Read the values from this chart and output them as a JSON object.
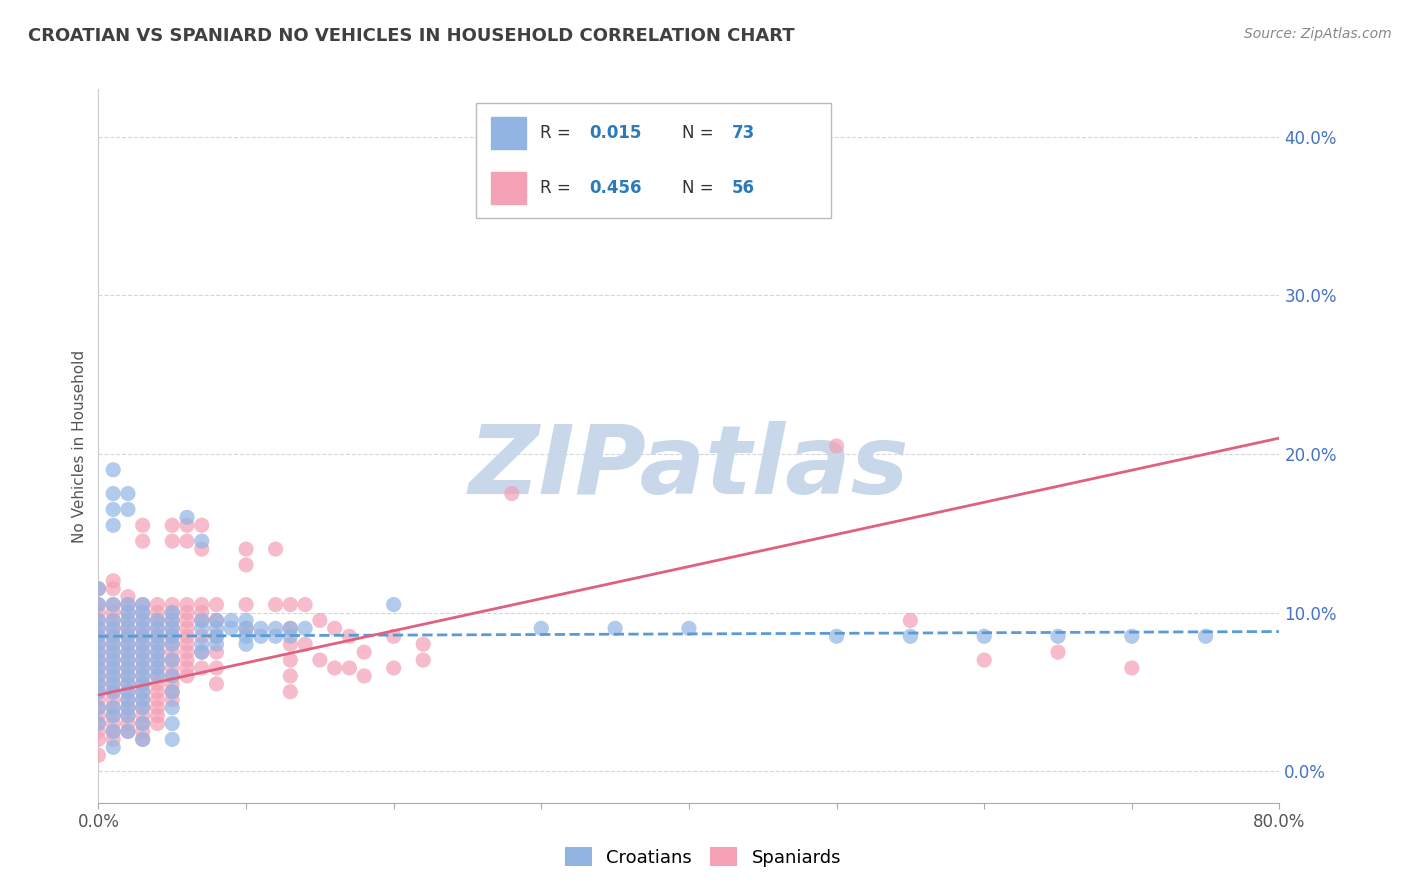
{
  "title": "CROATIAN VS SPANIARD NO VEHICLES IN HOUSEHOLD CORRELATION CHART",
  "source": "Source: ZipAtlas.com",
  "ylabel": "No Vehicles in Household",
  "xlim": [
    0.0,
    0.8
  ],
  "ylim": [
    -0.02,
    0.43
  ],
  "xticks": [
    0.0,
    0.1,
    0.2,
    0.3,
    0.4,
    0.5,
    0.6,
    0.7,
    0.8
  ],
  "yticks": [
    0.0,
    0.1,
    0.2,
    0.3,
    0.4
  ],
  "croatian_color": "#92b4e3",
  "spaniard_color": "#f4a0b5",
  "croatian_line_color": "#5b9bd5",
  "spaniard_line_color": "#e06080",
  "croatian_R": 0.015,
  "croatian_N": 73,
  "spaniard_R": 0.456,
  "spaniard_N": 56,
  "background_color": "#ffffff",
  "grid_color": "#cccccc",
  "watermark": "ZIPatlas",
  "watermark_color": "#c8d8ea",
  "croatian_line": [
    [
      0.0,
      0.085
    ],
    [
      0.8,
      0.088
    ]
  ],
  "spaniard_line": [
    [
      0.0,
      0.048
    ],
    [
      0.8,
      0.21
    ]
  ],
  "croatian_scatter": [
    [
      0.0,
      0.115
    ],
    [
      0.0,
      0.105
    ],
    [
      0.0,
      0.095
    ],
    [
      0.0,
      0.09
    ],
    [
      0.0,
      0.085
    ],
    [
      0.0,
      0.08
    ],
    [
      0.0,
      0.075
    ],
    [
      0.0,
      0.07
    ],
    [
      0.0,
      0.065
    ],
    [
      0.0,
      0.06
    ],
    [
      0.0,
      0.055
    ],
    [
      0.0,
      0.05
    ],
    [
      0.0,
      0.04
    ],
    [
      0.0,
      0.03
    ],
    [
      0.01,
      0.19
    ],
    [
      0.01,
      0.175
    ],
    [
      0.01,
      0.165
    ],
    [
      0.01,
      0.155
    ],
    [
      0.01,
      0.105
    ],
    [
      0.01,
      0.095
    ],
    [
      0.01,
      0.09
    ],
    [
      0.01,
      0.085
    ],
    [
      0.01,
      0.08
    ],
    [
      0.01,
      0.075
    ],
    [
      0.01,
      0.07
    ],
    [
      0.01,
      0.065
    ],
    [
      0.01,
      0.06
    ],
    [
      0.01,
      0.055
    ],
    [
      0.01,
      0.05
    ],
    [
      0.01,
      0.04
    ],
    [
      0.01,
      0.035
    ],
    [
      0.01,
      0.025
    ],
    [
      0.01,
      0.015
    ],
    [
      0.02,
      0.175
    ],
    [
      0.02,
      0.165
    ],
    [
      0.02,
      0.105
    ],
    [
      0.02,
      0.1
    ],
    [
      0.02,
      0.095
    ],
    [
      0.02,
      0.09
    ],
    [
      0.02,
      0.085
    ],
    [
      0.02,
      0.08
    ],
    [
      0.02,
      0.075
    ],
    [
      0.02,
      0.07
    ],
    [
      0.02,
      0.065
    ],
    [
      0.02,
      0.06
    ],
    [
      0.02,
      0.055
    ],
    [
      0.02,
      0.05
    ],
    [
      0.02,
      0.045
    ],
    [
      0.02,
      0.04
    ],
    [
      0.02,
      0.035
    ],
    [
      0.02,
      0.025
    ],
    [
      0.03,
      0.105
    ],
    [
      0.03,
      0.1
    ],
    [
      0.03,
      0.095
    ],
    [
      0.03,
      0.09
    ],
    [
      0.03,
      0.085
    ],
    [
      0.03,
      0.08
    ],
    [
      0.03,
      0.075
    ],
    [
      0.03,
      0.07
    ],
    [
      0.03,
      0.065
    ],
    [
      0.03,
      0.06
    ],
    [
      0.03,
      0.055
    ],
    [
      0.03,
      0.05
    ],
    [
      0.03,
      0.045
    ],
    [
      0.03,
      0.04
    ],
    [
      0.03,
      0.03
    ],
    [
      0.03,
      0.02
    ],
    [
      0.04,
      0.095
    ],
    [
      0.04,
      0.09
    ],
    [
      0.04,
      0.085
    ],
    [
      0.04,
      0.08
    ],
    [
      0.04,
      0.075
    ],
    [
      0.04,
      0.07
    ],
    [
      0.04,
      0.065
    ],
    [
      0.04,
      0.06
    ],
    [
      0.05,
      0.1
    ],
    [
      0.05,
      0.095
    ],
    [
      0.05,
      0.09
    ],
    [
      0.05,
      0.085
    ],
    [
      0.05,
      0.08
    ],
    [
      0.05,
      0.07
    ],
    [
      0.05,
      0.06
    ],
    [
      0.05,
      0.05
    ],
    [
      0.05,
      0.04
    ],
    [
      0.05,
      0.03
    ],
    [
      0.05,
      0.02
    ],
    [
      0.06,
      0.16
    ],
    [
      0.07,
      0.145
    ],
    [
      0.07,
      0.095
    ],
    [
      0.07,
      0.09
    ],
    [
      0.07,
      0.08
    ],
    [
      0.07,
      0.075
    ],
    [
      0.08,
      0.095
    ],
    [
      0.08,
      0.09
    ],
    [
      0.08,
      0.085
    ],
    [
      0.08,
      0.08
    ],
    [
      0.09,
      0.095
    ],
    [
      0.09,
      0.09
    ],
    [
      0.1,
      0.095
    ],
    [
      0.1,
      0.09
    ],
    [
      0.1,
      0.085
    ],
    [
      0.1,
      0.08
    ],
    [
      0.11,
      0.09
    ],
    [
      0.11,
      0.085
    ],
    [
      0.12,
      0.09
    ],
    [
      0.12,
      0.085
    ],
    [
      0.13,
      0.09
    ],
    [
      0.13,
      0.085
    ],
    [
      0.14,
      0.09
    ],
    [
      0.2,
      0.105
    ],
    [
      0.3,
      0.09
    ],
    [
      0.35,
      0.09
    ],
    [
      0.4,
      0.09
    ],
    [
      0.5,
      0.085
    ],
    [
      0.55,
      0.085
    ],
    [
      0.6,
      0.085
    ],
    [
      0.65,
      0.085
    ],
    [
      0.7,
      0.085
    ],
    [
      0.75,
      0.085
    ]
  ],
  "spaniard_scatter": [
    [
      0.0,
      0.115
    ],
    [
      0.0,
      0.105
    ],
    [
      0.0,
      0.1
    ],
    [
      0.0,
      0.095
    ],
    [
      0.0,
      0.09
    ],
    [
      0.0,
      0.085
    ],
    [
      0.0,
      0.08
    ],
    [
      0.0,
      0.075
    ],
    [
      0.0,
      0.07
    ],
    [
      0.0,
      0.065
    ],
    [
      0.0,
      0.06
    ],
    [
      0.0,
      0.055
    ],
    [
      0.0,
      0.05
    ],
    [
      0.0,
      0.045
    ],
    [
      0.0,
      0.04
    ],
    [
      0.0,
      0.035
    ],
    [
      0.0,
      0.03
    ],
    [
      0.0,
      0.025
    ],
    [
      0.0,
      0.02
    ],
    [
      0.0,
      0.01
    ],
    [
      0.01,
      0.12
    ],
    [
      0.01,
      0.115
    ],
    [
      0.01,
      0.105
    ],
    [
      0.01,
      0.1
    ],
    [
      0.01,
      0.095
    ],
    [
      0.01,
      0.09
    ],
    [
      0.01,
      0.085
    ],
    [
      0.01,
      0.08
    ],
    [
      0.01,
      0.075
    ],
    [
      0.01,
      0.07
    ],
    [
      0.01,
      0.065
    ],
    [
      0.01,
      0.06
    ],
    [
      0.01,
      0.055
    ],
    [
      0.01,
      0.05
    ],
    [
      0.01,
      0.045
    ],
    [
      0.01,
      0.04
    ],
    [
      0.01,
      0.035
    ],
    [
      0.01,
      0.03
    ],
    [
      0.01,
      0.025
    ],
    [
      0.01,
      0.02
    ],
    [
      0.02,
      0.11
    ],
    [
      0.02,
      0.105
    ],
    [
      0.02,
      0.1
    ],
    [
      0.02,
      0.095
    ],
    [
      0.02,
      0.09
    ],
    [
      0.02,
      0.085
    ],
    [
      0.02,
      0.08
    ],
    [
      0.02,
      0.075
    ],
    [
      0.02,
      0.07
    ],
    [
      0.02,
      0.065
    ],
    [
      0.02,
      0.06
    ],
    [
      0.02,
      0.055
    ],
    [
      0.02,
      0.05
    ],
    [
      0.02,
      0.045
    ],
    [
      0.02,
      0.04
    ],
    [
      0.02,
      0.035
    ],
    [
      0.02,
      0.03
    ],
    [
      0.02,
      0.025
    ],
    [
      0.03,
      0.155
    ],
    [
      0.03,
      0.145
    ],
    [
      0.03,
      0.105
    ],
    [
      0.03,
      0.1
    ],
    [
      0.03,
      0.095
    ],
    [
      0.03,
      0.09
    ],
    [
      0.03,
      0.085
    ],
    [
      0.03,
      0.08
    ],
    [
      0.03,
      0.075
    ],
    [
      0.03,
      0.07
    ],
    [
      0.03,
      0.065
    ],
    [
      0.03,
      0.06
    ],
    [
      0.03,
      0.055
    ],
    [
      0.03,
      0.05
    ],
    [
      0.03,
      0.045
    ],
    [
      0.03,
      0.04
    ],
    [
      0.03,
      0.035
    ],
    [
      0.03,
      0.03
    ],
    [
      0.03,
      0.025
    ],
    [
      0.03,
      0.02
    ],
    [
      0.04,
      0.105
    ],
    [
      0.04,
      0.1
    ],
    [
      0.04,
      0.095
    ],
    [
      0.04,
      0.09
    ],
    [
      0.04,
      0.085
    ],
    [
      0.04,
      0.08
    ],
    [
      0.04,
      0.075
    ],
    [
      0.04,
      0.07
    ],
    [
      0.04,
      0.065
    ],
    [
      0.04,
      0.06
    ],
    [
      0.04,
      0.055
    ],
    [
      0.04,
      0.05
    ],
    [
      0.04,
      0.045
    ],
    [
      0.04,
      0.04
    ],
    [
      0.04,
      0.035
    ],
    [
      0.04,
      0.03
    ],
    [
      0.05,
      0.155
    ],
    [
      0.05,
      0.145
    ],
    [
      0.05,
      0.105
    ],
    [
      0.05,
      0.1
    ],
    [
      0.05,
      0.095
    ],
    [
      0.05,
      0.09
    ],
    [
      0.05,
      0.085
    ],
    [
      0.05,
      0.08
    ],
    [
      0.05,
      0.075
    ],
    [
      0.05,
      0.07
    ],
    [
      0.05,
      0.065
    ],
    [
      0.05,
      0.06
    ],
    [
      0.05,
      0.055
    ],
    [
      0.05,
      0.05
    ],
    [
      0.05,
      0.045
    ],
    [
      0.06,
      0.155
    ],
    [
      0.06,
      0.145
    ],
    [
      0.06,
      0.105
    ],
    [
      0.06,
      0.1
    ],
    [
      0.06,
      0.095
    ],
    [
      0.06,
      0.09
    ],
    [
      0.06,
      0.085
    ],
    [
      0.06,
      0.08
    ],
    [
      0.06,
      0.075
    ],
    [
      0.06,
      0.07
    ],
    [
      0.06,
      0.065
    ],
    [
      0.06,
      0.06
    ],
    [
      0.07,
      0.155
    ],
    [
      0.07,
      0.14
    ],
    [
      0.07,
      0.105
    ],
    [
      0.07,
      0.1
    ],
    [
      0.07,
      0.095
    ],
    [
      0.07,
      0.085
    ],
    [
      0.07,
      0.075
    ],
    [
      0.07,
      0.065
    ],
    [
      0.08,
      0.105
    ],
    [
      0.08,
      0.095
    ],
    [
      0.08,
      0.085
    ],
    [
      0.08,
      0.075
    ],
    [
      0.08,
      0.065
    ],
    [
      0.08,
      0.055
    ],
    [
      0.1,
      0.14
    ],
    [
      0.1,
      0.13
    ],
    [
      0.1,
      0.105
    ],
    [
      0.1,
      0.09
    ],
    [
      0.12,
      0.14
    ],
    [
      0.12,
      0.105
    ],
    [
      0.13,
      0.105
    ],
    [
      0.13,
      0.09
    ],
    [
      0.13,
      0.08
    ],
    [
      0.13,
      0.07
    ],
    [
      0.13,
      0.06
    ],
    [
      0.13,
      0.05
    ],
    [
      0.14,
      0.105
    ],
    [
      0.14,
      0.08
    ],
    [
      0.15,
      0.095
    ],
    [
      0.15,
      0.07
    ],
    [
      0.16,
      0.09
    ],
    [
      0.16,
      0.065
    ],
    [
      0.17,
      0.085
    ],
    [
      0.17,
      0.065
    ],
    [
      0.18,
      0.075
    ],
    [
      0.18,
      0.06
    ],
    [
      0.2,
      0.085
    ],
    [
      0.2,
      0.065
    ],
    [
      0.22,
      0.08
    ],
    [
      0.22,
      0.07
    ],
    [
      0.28,
      0.175
    ],
    [
      0.35,
      0.355
    ],
    [
      0.5,
      0.205
    ],
    [
      0.55,
      0.095
    ],
    [
      0.6,
      0.07
    ],
    [
      0.65,
      0.075
    ],
    [
      0.7,
      0.065
    ]
  ]
}
